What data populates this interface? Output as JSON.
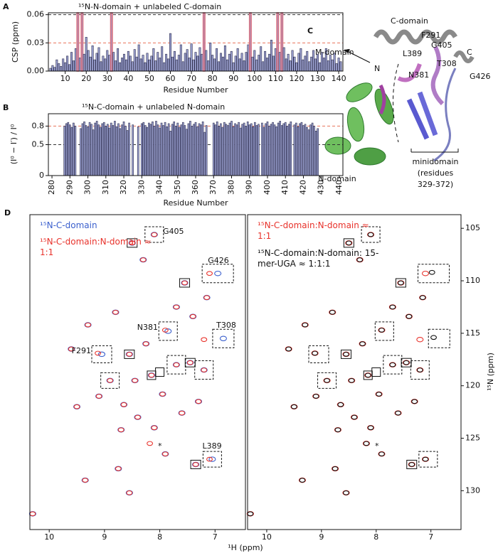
{
  "chart_data": [
    {
      "type": "bar",
      "panel": "A",
      "title": "¹⁵N-N-domain + unlabeled C-domain",
      "x_label": "Residue Number",
      "y_label": "CSP (ppm)",
      "color": "#9ea4d4",
      "highlight": [
        16,
        18,
        32,
        76,
        98,
        111,
        113
      ],
      "highlight_color": "#d9707f",
      "xlim": [
        2,
        142
      ],
      "xticks": [
        10,
        20,
        30,
        40,
        50,
        60,
        70,
        80,
        90,
        100,
        110,
        120,
        130,
        140
      ],
      "ylim": [
        0,
        0.062
      ],
      "yticks": [
        {
          "value": 0,
          "label": "0.00"
        },
        {
          "value": 0.03,
          "label": "0.03"
        },
        {
          "value": 0.06,
          "label": "0.06"
        }
      ],
      "ref_lines": [
        {
          "value": 0.03,
          "color": "#e8735a"
        },
        {
          "value": 0.06,
          "color": "#333333"
        }
      ],
      "x": [
        3,
        4,
        5,
        6,
        7,
        8,
        9,
        10,
        11,
        12,
        13,
        14,
        15,
        16,
        17,
        18,
        19,
        20,
        21,
        22,
        23,
        24,
        25,
        26,
        27,
        28,
        29,
        30,
        31,
        32,
        33,
        34,
        35,
        36,
        37,
        38,
        39,
        40,
        41,
        42,
        43,
        44,
        45,
        46,
        47,
        48,
        49,
        50,
        51,
        52,
        53,
        54,
        55,
        56,
        57,
        58,
        59,
        60,
        61,
        62,
        63,
        64,
        65,
        66,
        67,
        68,
        69,
        70,
        71,
        72,
        73,
        74,
        75,
        76,
        77,
        78,
        79,
        80,
        81,
        82,
        83,
        84,
        85,
        86,
        87,
        88,
        89,
        90,
        91,
        92,
        93,
        94,
        95,
        96,
        97,
        98,
        99,
        100,
        101,
        102,
        103,
        104,
        105,
        106,
        107,
        108,
        109,
        110,
        111,
        112,
        113,
        114,
        115,
        116,
        117,
        118,
        119,
        120,
        121,
        122,
        123,
        124,
        125,
        126,
        127,
        128,
        129,
        130,
        131,
        132,
        133,
        134,
        135,
        136,
        137,
        138,
        139,
        140,
        141
      ],
      "values": [
        0.003,
        0.006,
        0.004,
        0.012,
        0.008,
        0.005,
        0.013,
        0.009,
        0.016,
        0.007,
        0.02,
        0.011,
        0.024,
        0.062,
        0.014,
        0.062,
        0.018,
        0.036,
        0.022,
        0.015,
        0.027,
        0.012,
        0.019,
        0.025,
        0.01,
        0.016,
        0.013,
        0.022,
        0.017,
        0.062,
        0.02,
        0.011,
        0.024,
        0.009,
        0.014,
        0.018,
        0.012,
        0.021,
        0.016,
        0.01,
        0.023,
        0.015,
        0.028,
        0.013,
        0.017,
        0.009,
        0.019,
        0.012,
        0.016,
        0.024,
        0.011,
        0.02,
        0.014,
        0.026,
        0.009,
        0.018,
        0.013,
        0.04,
        0.015,
        0.021,
        0.012,
        0.017,
        0.028,
        0.01,
        0.019,
        0.023,
        0.014,
        0.029,
        0.012,
        0.02,
        0.016,
        0.025,
        0.018,
        0.062,
        0.022,
        0.011,
        0.03,
        0.017,
        0.013,
        0.024,
        0.01,
        0.019,
        0.015,
        0.027,
        0.012,
        0.018,
        0.021,
        0.009,
        0.016,
        0.024,
        0.013,
        0.019,
        0.011,
        0.02,
        0.028,
        0.062,
        0.015,
        0.022,
        0.012,
        0.017,
        0.026,
        0.01,
        0.021,
        0.014,
        0.018,
        0.033,
        0.016,
        0.024,
        0.062,
        0.02,
        0.062,
        0.025,
        0.013,
        0.018,
        0.011,
        0.022,
        0.015,
        0.009,
        0.019,
        0.024,
        0.012,
        0.016,
        0.021,
        0.01,
        0.015,
        0.022,
        0.013,
        0.018,
        0.009,
        0.02,
        0.014,
        0.024,
        0.011,
        0.017,
        0.012,
        0.019,
        0.008,
        0.014,
        0.01
      ]
    },
    {
      "type": "bar",
      "panel": "B",
      "title": "¹⁵N-C-domain + unlabeled N-domain",
      "x_label": "Residue Number",
      "y_label": "(I⁰ − I′) / I⁰",
      "color": "#9ea4d4",
      "xlim": [
        278,
        442
      ],
      "xticks": [
        280,
        290,
        300,
        310,
        320,
        330,
        340,
        350,
        360,
        370,
        380,
        390,
        400,
        410,
        420,
        430,
        440
      ],
      "ylim": [
        0,
        1
      ],
      "yticks": [
        0,
        0.5,
        0.8
      ],
      "ref_lines": [
        {
          "value": 0.8,
          "color": "#e8735a"
        },
        {
          "value": 0.5,
          "color": "#333333"
        }
      ],
      "x": [
        287,
        288,
        289,
        290,
        291,
        292,
        293,
        294,
        295,
        296,
        297,
        298,
        299,
        300,
        301,
        302,
        303,
        304,
        305,
        306,
        307,
        308,
        309,
        310,
        311,
        312,
        313,
        314,
        315,
        316,
        317,
        318,
        319,
        320,
        321,
        322,
        323,
        324,
        325,
        326,
        327,
        328,
        329,
        330,
        331,
        332,
        333,
        334,
        335,
        336,
        337,
        338,
        339,
        340,
        341,
        342,
        343,
        344,
        345,
        346,
        347,
        348,
        349,
        350,
        351,
        352,
        353,
        354,
        355,
        356,
        357,
        358,
        359,
        360,
        361,
        362,
        363,
        364,
        365,
        366,
        367,
        368,
        369,
        370,
        371,
        372,
        373,
        374,
        375,
        376,
        377,
        378,
        379,
        380,
        381,
        382,
        383,
        384,
        385,
        386,
        387,
        388,
        389,
        390,
        391,
        392,
        393,
        394,
        395,
        396,
        397,
        398,
        399,
        400,
        401,
        402,
        403,
        404,
        405,
        406,
        407,
        408,
        409,
        410,
        411,
        412,
        413,
        414,
        415,
        416,
        417,
        418,
        419,
        420,
        421,
        422,
        423,
        424,
        425,
        426,
        427,
        428
      ],
      "values": [
        0.8,
        0.84,
        0.86,
        0.82,
        0.78,
        0.85,
        0.8,
        null,
        null,
        0.76,
        0.84,
        0.87,
        0.81,
        0.79,
        0.86,
        0.83,
        0.74,
        0.85,
        0.88,
        0.82,
        0.78,
        0.84,
        0.86,
        0.8,
        0.83,
        0.77,
        0.85,
        0.81,
        0.88,
        0.79,
        0.84,
        0.76,
        0.82,
        0.87,
        0.8,
        0.73,
        0.85,
        null,
        0.82,
        null,
        null,
        0.79,
        null,
        0.84,
        0.86,
        0.81,
        0.78,
        0.85,
        0.83,
        0.87,
        0.8,
        0.88,
        0.82,
        0.77,
        0.85,
        0.81,
        0.86,
        0.79,
        0.84,
        0.72,
        0.83,
        0.87,
        0.8,
        0.85,
        0.78,
        0.82,
        0.86,
        0.81,
        0.75,
        0.84,
        0.88,
        0.8,
        0.83,
        0.86,
        0.79,
        0.84,
        0.82,
        0.87,
        0.7,
        0.81,
        null,
        null,
        null,
        0.85,
        0.82,
        0.87,
        0.8,
        0.84,
        0.78,
        0.86,
        0.83,
        0.81,
        0.85,
        0.88,
        0.79,
        0.84,
        0.82,
        0.86,
        0.77,
        0.83,
        0.85,
        0.8,
        0.87,
        0.82,
        0.84,
        0.79,
        0.86,
        0.81,
        0.83,
        null,
        0.85,
        0.78,
        0.84,
        0.87,
        0.8,
        0.83,
        0.86,
        0.82,
        0.79,
        0.85,
        0.88,
        0.81,
        0.84,
        0.86,
        0.8,
        0.83,
        0.87,
        null,
        0.82,
        0.85,
        0.79,
        0.84,
        0.86,
        0.81,
        0.83,
        0.78,
        0.74,
        0.82,
        0.85,
        0.8,
        0.72,
        0.76
      ]
    },
    {
      "type": "scatter",
      "panel": "D",
      "x_label": "¹H (ppm)",
      "xlim": [
        10.35,
        6.45
      ],
      "xticks": [
        10,
        9,
        8,
        7
      ],
      "ylim": [
        133.7,
        103.7
      ],
      "annotations": [
        "G405",
        "G426",
        "N381",
        "T308",
        "F291",
        "L389",
        "*"
      ],
      "series": [
        {
          "name": "¹⁵N-C-domain",
          "color": "#3a5fcd",
          "x": [
            8.1,
            8.5,
            6.95,
            7.55,
            7.85,
            6.85,
            9.05,
            8.55,
            7.7,
            7.45,
            7.2,
            8.15,
            8.9,
            7.05,
            7.35,
            9.6,
            9.3,
            9.1,
            8.8,
            8.3,
            7.7,
            7.3,
            7.6,
            8.4,
            8.7,
            9.5,
            8.1,
            7.9,
            8.75,
            9.35,
            8.55,
            10.3,
            7.15,
            8.45,
            7.95,
            8.25,
            7.4,
            8.65
          ],
          "y": [
            105.6,
            106.4,
            109.3,
            110.2,
            114.8,
            115.5,
            117.0,
            117.0,
            118.0,
            117.8,
            118.5,
            119.0,
            119.5,
            127.0,
            127.5,
            116.5,
            114.2,
            121.0,
            113.0,
            108.0,
            112.5,
            121.5,
            122.6,
            123.0,
            124.2,
            122.0,
            124.0,
            126.5,
            127.9,
            129.0,
            130.2,
            132.2,
            111.6,
            119.5,
            120.8,
            116.0,
            113.4,
            121.8
          ]
        },
        {
          "name": "¹⁵N-C-domain:N-domain ≈ 1:1",
          "color": "#e8322b",
          "x": [
            8.1,
            8.5,
            7.1,
            7.55,
            7.9,
            7.2,
            9.12,
            8.55,
            7.7,
            7.45,
            7.2,
            8.15,
            8.9,
            7.1,
            7.35,
            9.6,
            9.3,
            9.1,
            8.8,
            8.3,
            7.7,
            7.3,
            7.6,
            8.4,
            8.7,
            9.5,
            8.1,
            7.9,
            8.75,
            9.35,
            8.55,
            10.3,
            7.15,
            8.45,
            7.95,
            8.25,
            7.4,
            8.65,
            8.18
          ],
          "y": [
            105.6,
            106.4,
            109.3,
            110.2,
            114.7,
            115.6,
            116.9,
            117.0,
            118.0,
            117.8,
            118.5,
            119.0,
            119.5,
            127.0,
            127.5,
            116.5,
            114.2,
            121.0,
            113.0,
            108.0,
            112.5,
            121.5,
            122.6,
            123.0,
            124.2,
            122.0,
            124.0,
            126.5,
            127.9,
            129.0,
            130.2,
            132.2,
            111.6,
            119.5,
            120.8,
            116.0,
            113.4,
            121.8,
            125.5
          ]
        }
      ]
    },
    {
      "type": "scatter",
      "y_label": "¹⁵N (ppm)",
      "xlim": [
        10.35,
        6.45
      ],
      "xticks": [
        10,
        9,
        8,
        7
      ],
      "ylim": [
        133.7,
        103.7
      ],
      "yticks": [
        105,
        110,
        115,
        120,
        125,
        130
      ],
      "annotations": [
        "*"
      ],
      "series": [
        {
          "name": "¹⁵N-C-domain:N-domain ≈ 1:1",
          "color": "#e8322b",
          "x": [
            8.1,
            8.5,
            7.1,
            7.55,
            7.9,
            7.2,
            9.12,
            8.55,
            7.7,
            7.45,
            7.2,
            8.15,
            8.9,
            7.1,
            7.35,
            9.6,
            9.3,
            9.1,
            8.8,
            8.3,
            7.7,
            7.3,
            7.6,
            8.4,
            8.7,
            9.5,
            8.1,
            7.9,
            8.75,
            9.35,
            8.55,
            10.3,
            7.15,
            8.45,
            7.95,
            8.25,
            7.4,
            8.65,
            8.18
          ],
          "y": [
            105.6,
            106.4,
            109.3,
            110.2,
            114.7,
            115.6,
            116.9,
            117.0,
            118.0,
            117.8,
            118.5,
            119.0,
            119.5,
            127.0,
            127.5,
            116.5,
            114.2,
            121.0,
            113.0,
            108.0,
            112.5,
            121.5,
            122.6,
            123.0,
            124.2,
            122.0,
            124.0,
            126.5,
            127.9,
            129.0,
            130.2,
            132.2,
            111.6,
            119.5,
            120.8,
            116.0,
            113.4,
            121.8,
            125.5
          ]
        },
        {
          "name": "¹⁵N-C-domain:N-domain: 15-mer-UGA ≈ 1:1:1",
          "color": "#111111",
          "x": [
            8.1,
            8.5,
            6.98,
            7.55,
            7.9,
            6.95,
            9.12,
            8.55,
            7.7,
            7.45,
            7.2,
            8.15,
            8.9,
            7.1,
            7.35,
            9.6,
            9.3,
            9.1,
            8.8,
            8.3,
            7.7,
            7.3,
            7.6,
            8.4,
            8.7,
            9.5,
            8.1,
            7.9,
            8.75,
            9.35,
            8.55,
            10.3,
            7.15,
            8.45,
            7.95,
            8.25,
            7.4,
            8.65,
            8.18
          ],
          "y": [
            105.6,
            106.4,
            109.2,
            110.2,
            114.7,
            115.4,
            116.9,
            117.0,
            118.0,
            117.8,
            118.5,
            119.0,
            119.5,
            127.0,
            127.5,
            116.5,
            114.2,
            121.0,
            113.0,
            108.0,
            112.5,
            121.5,
            122.6,
            123.0,
            124.2,
            122.0,
            124.0,
            126.5,
            127.9,
            129.0,
            130.2,
            132.2,
            111.6,
            119.5,
            120.8,
            116.0,
            113.4,
            121.8,
            125.5
          ]
        }
      ]
    }
  ],
  "structure": {
    "panel": "C",
    "labels": [
      "C-domain",
      "M-domain",
      "N",
      "C",
      "N-domain",
      "minidomain",
      "(residues",
      "329-372)"
    ],
    "residues": [
      "F291",
      "G405",
      "L389",
      "T308",
      "N381",
      "G426"
    ]
  }
}
